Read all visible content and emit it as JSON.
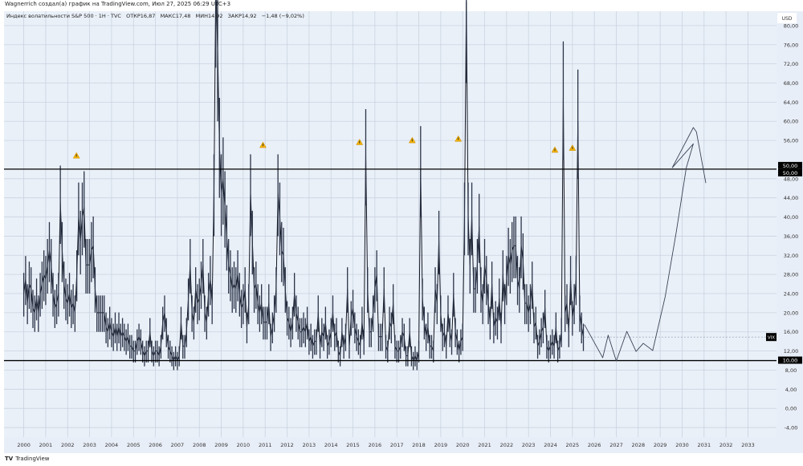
{
  "header": {
    "author_line": "Wagnerrich создал(а) график на TradingView.com, Июл 27, 2025 06:29 UTC+3",
    "legend": "Индекс волатильности S&P 500 · 1Н · TVC   ОТКР16,87   МАКС17,48   МИН14,92   ЗАКР14,92   −1,48 (−9,02%)"
  },
  "branding": {
    "logo_text": "TradingView"
  },
  "chart_data": {
    "type": "line",
    "title": "Индекс волатильности S&P 500 · 1Н · TVC",
    "symbol_label": "VIX",
    "currency_label": "USD",
    "ylim": [
      -6,
      83
    ],
    "xlim": [
      1999.1,
      2034.3
    ],
    "grid": true,
    "y_ticks": [
      "-4,00",
      "0,00",
      "4,00",
      "8,00",
      "12,00",
      "16,00",
      "20,00",
      "24,00",
      "28,00",
      "32,00",
      "36,00",
      "40,00",
      "44,00",
      "48,00",
      "56,00",
      "60,00",
      "64,00",
      "68,00",
      "72,00",
      "76,00",
      "80,00"
    ],
    "y_tick_values": [
      -4,
      0,
      4,
      8,
      12,
      16,
      20,
      24,
      28,
      32,
      36,
      40,
      44,
      48,
      56,
      60,
      64,
      68,
      72,
      76,
      80
    ],
    "x_ticks": [
      "2000",
      "2001",
      "2002",
      "2003",
      "2004",
      "2005",
      "2006",
      "2007",
      "2008",
      "2009",
      "2010",
      "2011",
      "2012",
      "2013",
      "2014",
      "2015",
      "2016",
      "2017",
      "2018",
      "2019",
      "2020",
      "2021",
      "2022",
      "2023",
      "2024",
      "2025",
      "2026",
      "2027",
      "2028",
      "2029",
      "2030",
      "2031",
      "2032",
      "2033"
    ],
    "series_start": 2000.0,
    "series_step_months": 1,
    "values": [
      24,
      27,
      22,
      26,
      25,
      21,
      20,
      23,
      20,
      24,
      26,
      28,
      27,
      30,
      33,
      30,
      24,
      21,
      22,
      24,
      43,
      33,
      26,
      23,
      22,
      24,
      21,
      22,
      20,
      28,
      40,
      35,
      40,
      42,
      30,
      30,
      30,
      33,
      34,
      25,
      20,
      20,
      20,
      20,
      20,
      17,
      16,
      18,
      16,
      15,
      17,
      15,
      17,
      15,
      16,
      15,
      14,
      15,
      13,
      13,
      12,
      12,
      14,
      15,
      14,
      12,
      11,
      12,
      12,
      16,
      12,
      11,
      12,
      12,
      11,
      13,
      18,
      20,
      16,
      13,
      12,
      11,
      10,
      11,
      10,
      11,
      18,
      13,
      13,
      16,
      23,
      30,
      20,
      18,
      25,
      22,
      23,
      26,
      30,
      20,
      18,
      24,
      27,
      22,
      45,
      89,
      75,
      55,
      45,
      48,
      42,
      36,
      30,
      28,
      25,
      26,
      25,
      28,
      24,
      21,
      22,
      25,
      17,
      22,
      45,
      35,
      25,
      26,
      22,
      20,
      22,
      18,
      18,
      18,
      22,
      15,
      17,
      20,
      25,
      45,
      40,
      33,
      32,
      25,
      19,
      18,
      16,
      18,
      24,
      20,
      18,
      16,
      16,
      17,
      16,
      18,
      14,
      15,
      13,
      14,
      14,
      20,
      13,
      16,
      15,
      18,
      13,
      14,
      16,
      20,
      15,
      16,
      12,
      11,
      16,
      13,
      15,
      25,
      13,
      19,
      21,
      17,
      15,
      14,
      13,
      18,
      14,
      53,
      25,
      16,
      16,
      20,
      25,
      28,
      15,
      15,
      15,
      25,
      13,
      12,
      18,
      17,
      22,
      13,
      12,
      12,
      13,
      16,
      15,
      11,
      11,
      16,
      11,
      10,
      11,
      10,
      12,
      50,
      23,
      18,
      15,
      17,
      13,
      13,
      12,
      25,
      22,
      35,
      20,
      15,
      16,
      13,
      20,
      16,
      14,
      24,
      16,
      14,
      12,
      14,
      15,
      40,
      85,
      40,
      30,
      40,
      25,
      25,
      30,
      38,
      25,
      22,
      30,
      27,
      22,
      18,
      26,
      17,
      19,
      18,
      23,
      17,
      28,
      22,
      27,
      32,
      30,
      33,
      34,
      34,
      27,
      25,
      34,
      31,
      22,
      22,
      20,
      22,
      26,
      17,
      18,
      13,
      14,
      16,
      17,
      21,
      13,
      12,
      13,
      14,
      13,
      17,
      12,
      13,
      16,
      65,
      20,
      22,
      16,
      27,
      19,
      22,
      27,
      60,
      20,
      17,
      15
    ],
    "last_close": 14.92,
    "horizontal_levels": [
      {
        "value": 50,
        "label": "50,00"
      },
      {
        "value": 10,
        "label": "10,00"
      }
    ],
    "projection_drawing": [
      [
        2025.55,
        17.5
      ],
      [
        2026.38,
        10.6
      ],
      [
        2026.63,
        15.3
      ],
      [
        2027.0,
        9.9
      ],
      [
        2027.48,
        16.1
      ],
      [
        2027.9,
        11.9
      ],
      [
        2028.23,
        13.6
      ],
      [
        2028.66,
        12.1
      ],
      [
        2029.23,
        23.4
      ],
      [
        2029.73,
        36.8
      ],
      [
        2030.19,
        50.3
      ],
      [
        2030.51,
        55.3
      ],
      [
        2029.55,
        50.3
      ],
      [
        2030.51,
        58.7
      ],
      [
        2030.65,
        57.8
      ],
      [
        2031.08,
        47.1
      ]
    ],
    "warning_markers": [
      [
        2002.4,
        52.8
      ],
      [
        2010.9,
        55.0
      ],
      [
        2015.3,
        55.6
      ],
      [
        2017.7,
        56.0
      ],
      [
        2019.8,
        56.3
      ],
      [
        2024.2,
        54.0
      ],
      [
        2025.0,
        54.4
      ]
    ],
    "colors": {
      "background": "#eaf0f8",
      "grid": "#c9d3e0",
      "series": "#131722",
      "level": "#000000",
      "warning": "#f5b301",
      "axis_label_bg": "#000000"
    }
  }
}
